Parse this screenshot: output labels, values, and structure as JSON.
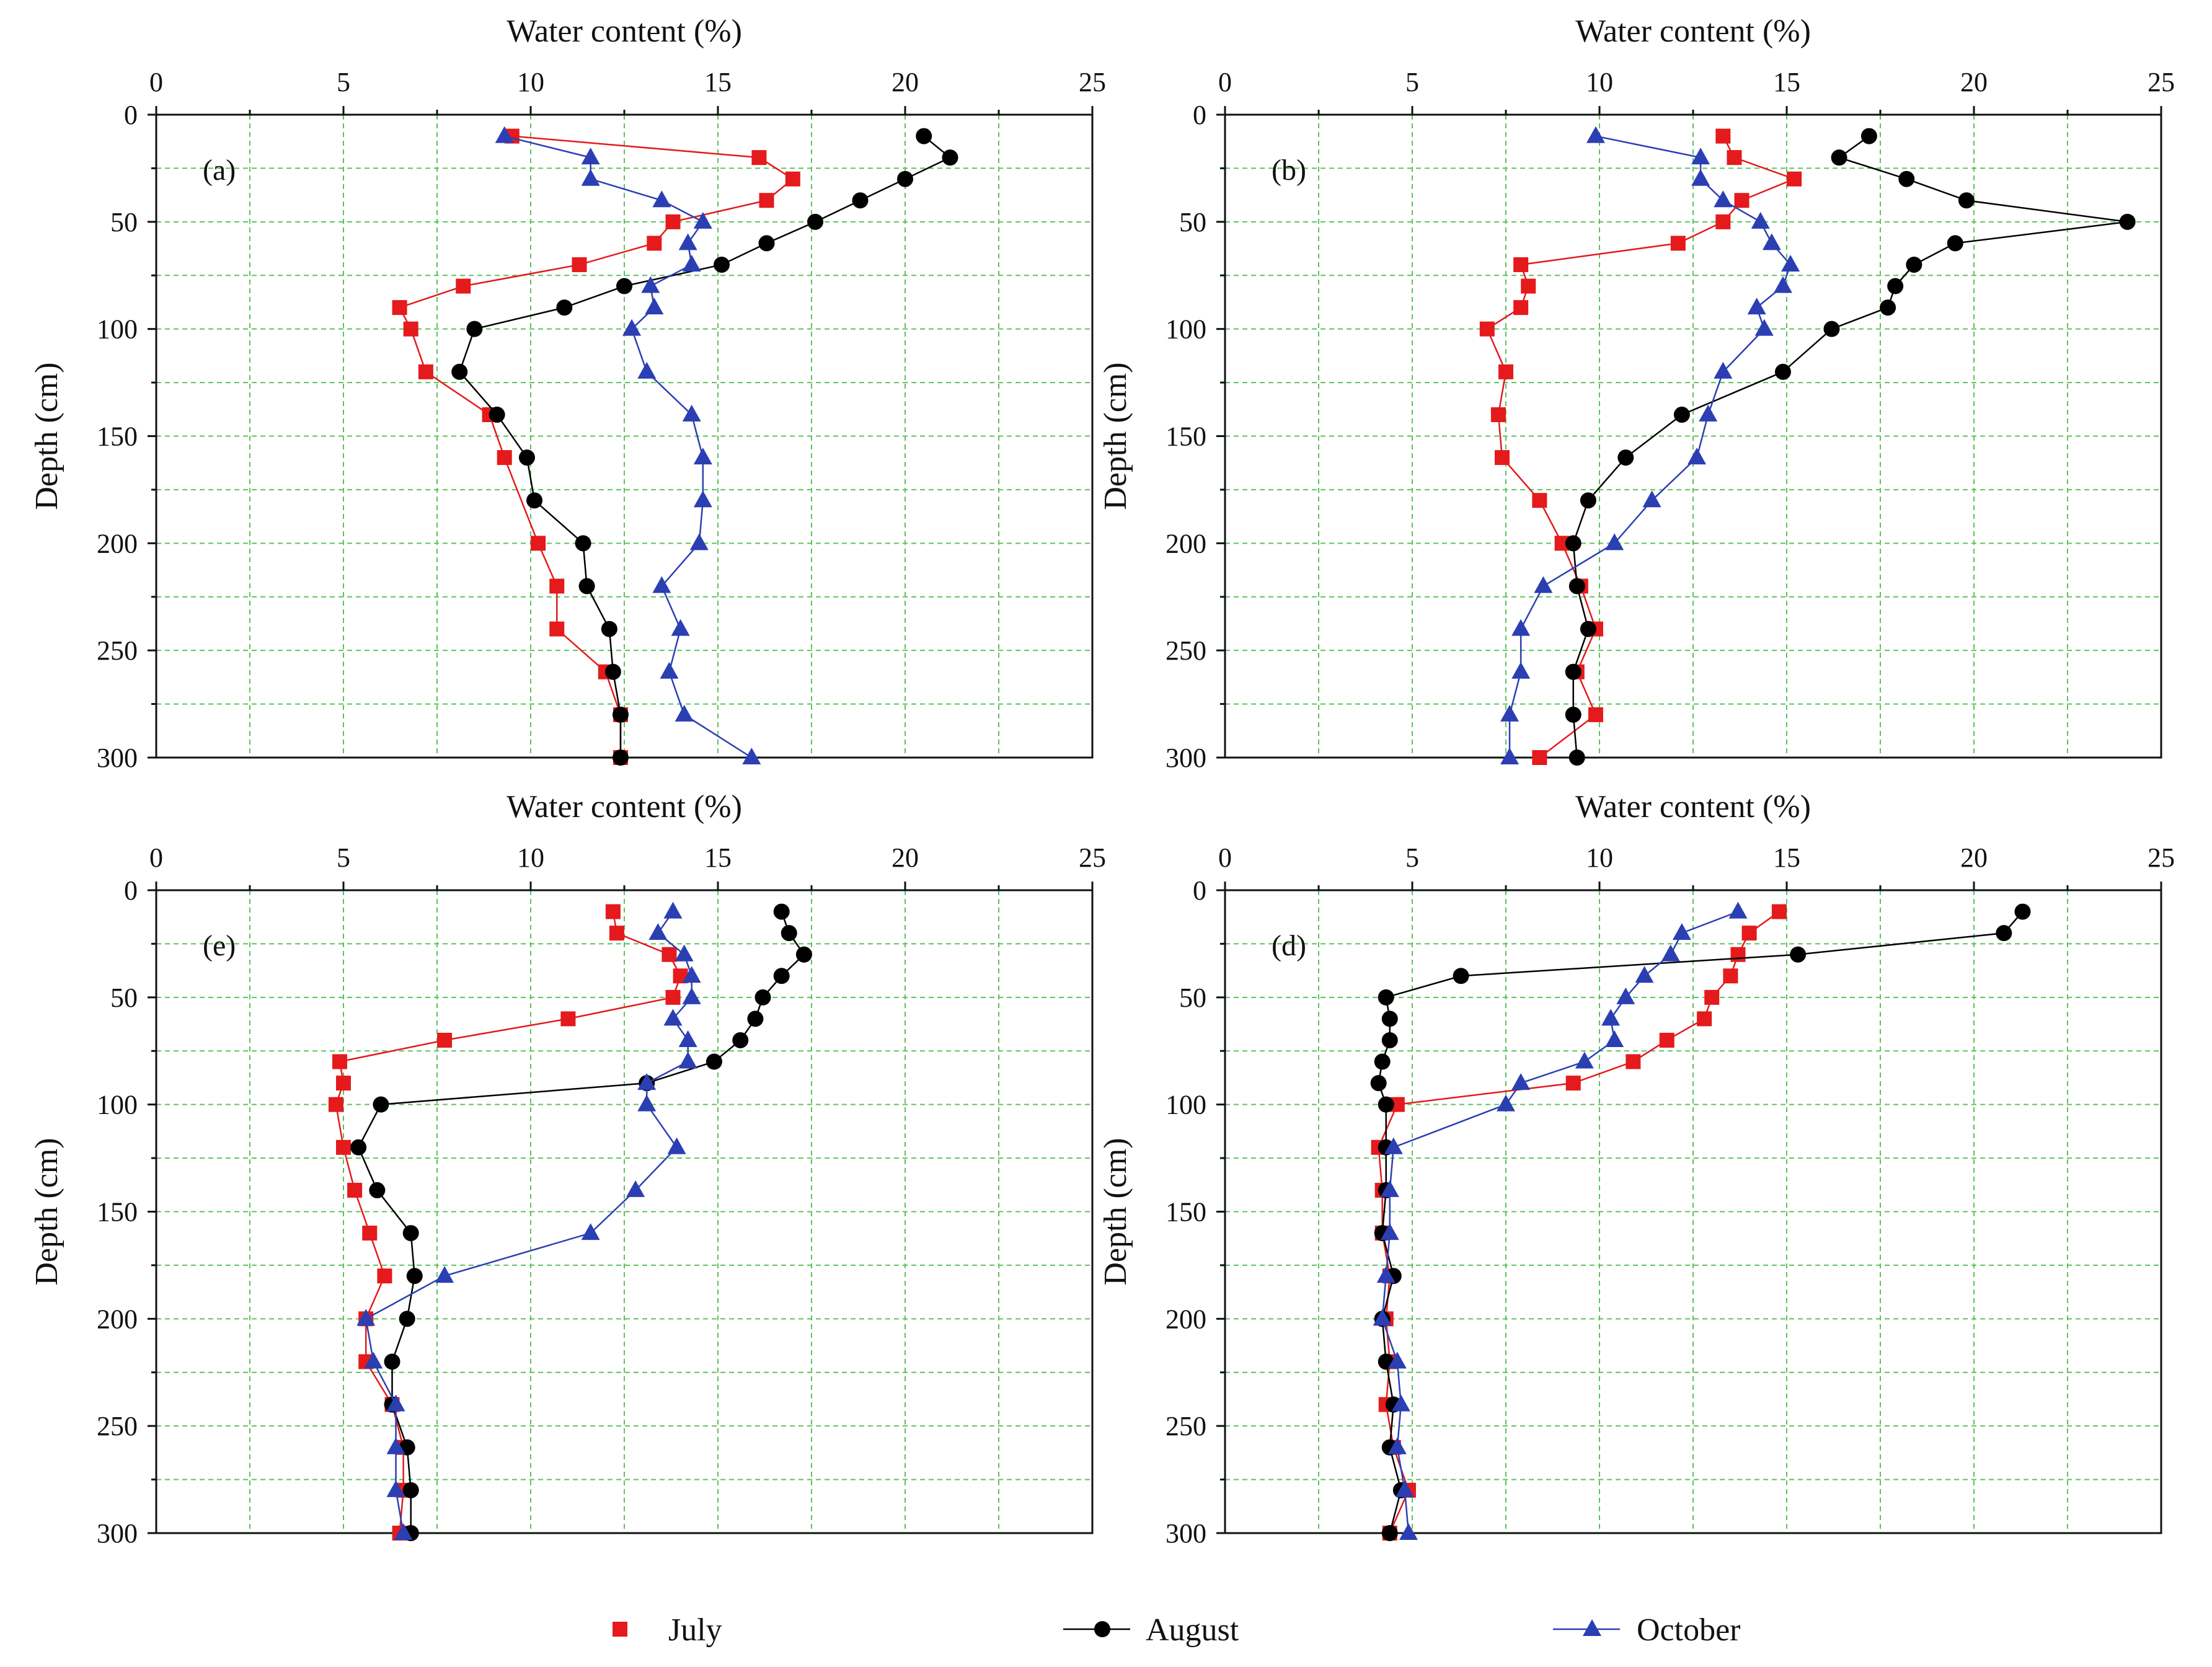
{
  "figure": {
    "legend": [
      {
        "name": "July",
        "marker": "square",
        "color": "#e41a1c"
      },
      {
        "name": "August",
        "marker": "circle",
        "color": "#000000"
      },
      {
        "name": "October",
        "marker": "triangle",
        "color": "#2b3fb3"
      }
    ]
  },
  "chart_data": [
    {
      "type": "line",
      "panel_label": "(a)",
      "xlabel": "Water content (%)",
      "ylabel": "Depth (cm)",
      "xlim": [
        0,
        25
      ],
      "ylim": [
        0,
        300
      ],
      "xticks": [
        0,
        5,
        10,
        15,
        20,
        25
      ],
      "yticks": [
        0,
        50,
        100,
        150,
        200,
        250,
        300
      ],
      "y_inverted": true,
      "x_axis_position": "top",
      "grid": true,
      "series": [
        {
          "name": "July",
          "color": "#e41a1c",
          "marker": "square",
          "x": [
            9.5,
            16.1,
            17.0,
            16.3,
            13.8,
            13.3,
            11.3,
            8.2,
            6.5,
            6.8,
            7.2,
            8.9,
            9.3,
            10.2,
            10.7,
            10.7,
            12.0,
            12.4,
            12.4
          ],
          "y": [
            10,
            20,
            30,
            40,
            50,
            60,
            70,
            80,
            90,
            100,
            120,
            140,
            160,
            200,
            220,
            240,
            260,
            280,
            300
          ]
        },
        {
          "name": "August",
          "color": "#000000",
          "marker": "circle",
          "x": [
            20.5,
            21.2,
            20.0,
            18.8,
            17.6,
            16.3,
            15.1,
            12.5,
            10.9,
            8.5,
            8.1,
            9.1,
            9.9,
            10.1,
            11.4,
            11.5,
            12.1,
            12.2,
            12.4,
            12.4
          ],
          "y": [
            10,
            20,
            30,
            40,
            50,
            60,
            70,
            80,
            90,
            100,
            120,
            140,
            160,
            180,
            200,
            220,
            240,
            260,
            280,
            300
          ]
        },
        {
          "name": "October",
          "color": "#2b3fb3",
          "marker": "triangle",
          "x": [
            9.3,
            11.6,
            11.6,
            13.5,
            14.6,
            14.2,
            14.3,
            13.2,
            13.3,
            12.7,
            13.1,
            14.3,
            14.6,
            14.6,
            14.5,
            13.5,
            14.0,
            13.7,
            14.1,
            15.9
          ],
          "y": [
            10,
            20,
            30,
            40,
            50,
            60,
            70,
            80,
            90,
            100,
            120,
            140,
            160,
            180,
            200,
            220,
            240,
            260,
            280,
            300
          ]
        }
      ]
    },
    {
      "type": "line",
      "panel_label": "(b)",
      "xlabel": "Water content (%)",
      "ylabel": "Depth (cm)",
      "xlim": [
        0,
        25
      ],
      "ylim": [
        0,
        300
      ],
      "xticks": [
        0,
        5,
        10,
        15,
        20,
        25
      ],
      "yticks": [
        0,
        50,
        100,
        150,
        200,
        250,
        300
      ],
      "y_inverted": true,
      "x_axis_position": "top",
      "grid": true,
      "series": [
        {
          "name": "July",
          "color": "#e41a1c",
          "marker": "square",
          "x": [
            13.3,
            13.6,
            15.2,
            13.8,
            13.3,
            12.1,
            7.9,
            8.1,
            7.9,
            7.0,
            7.5,
            7.3,
            7.4,
            8.4,
            9.0,
            9.5,
            9.9,
            9.4,
            9.9,
            8.4
          ],
          "y": [
            10,
            20,
            30,
            40,
            50,
            60,
            70,
            80,
            90,
            100,
            120,
            140,
            160,
            180,
            200,
            220,
            240,
            260,
            280,
            300
          ]
        },
        {
          "name": "August",
          "color": "#000000",
          "marker": "circle",
          "x": [
            17.2,
            16.4,
            18.2,
            19.8,
            24.1,
            19.5,
            18.4,
            17.9,
            17.7,
            16.2,
            14.9,
            12.2,
            10.7,
            9.7,
            9.3,
            9.4,
            9.7,
            9.3,
            9.3,
            9.4
          ],
          "y": [
            10,
            20,
            30,
            40,
            50,
            60,
            70,
            80,
            90,
            100,
            120,
            140,
            160,
            180,
            200,
            220,
            240,
            260,
            280,
            300
          ]
        },
        {
          "name": "October",
          "color": "#2b3fb3",
          "marker": "triangle",
          "x": [
            9.9,
            12.7,
            12.7,
            13.3,
            14.3,
            14.6,
            15.1,
            14.9,
            14.2,
            14.4,
            13.3,
            12.9,
            12.6,
            11.4,
            10.4,
            8.5,
            7.9,
            7.9,
            7.6,
            7.6
          ],
          "y": [
            10,
            20,
            30,
            40,
            50,
            60,
            70,
            80,
            90,
            100,
            120,
            140,
            160,
            180,
            200,
            220,
            240,
            260,
            280,
            300
          ]
        }
      ]
    },
    {
      "type": "line",
      "panel_label": "(e)",
      "xlabel": "Water content (%)",
      "ylabel": "Depth (cm)",
      "xlim": [
        0,
        25
      ],
      "ylim": [
        0,
        300
      ],
      "xticks": [
        0,
        5,
        10,
        15,
        20,
        25
      ],
      "yticks": [
        0,
        50,
        100,
        150,
        200,
        250,
        300
      ],
      "y_inverted": true,
      "x_axis_position": "top",
      "grid": true,
      "series": [
        {
          "name": "July",
          "color": "#e41a1c",
          "marker": "square",
          "x": [
            12.2,
            12.3,
            13.7,
            14.0,
            13.8,
            11.0,
            7.7,
            4.9,
            5.0,
            4.8,
            5.0,
            5.3,
            5.7,
            6.1,
            5.6,
            5.6,
            6.3,
            6.6,
            6.6,
            6.5
          ],
          "y": [
            10,
            20,
            30,
            40,
            50,
            60,
            70,
            80,
            90,
            100,
            120,
            140,
            160,
            180,
            200,
            220,
            240,
            260,
            280,
            300
          ]
        },
        {
          "name": "August",
          "color": "#000000",
          "marker": "circle",
          "x": [
            16.7,
            16.9,
            17.3,
            16.7,
            16.2,
            16.0,
            15.6,
            14.9,
            13.1,
            6.0,
            5.4,
            5.9,
            6.8,
            6.9,
            6.7,
            6.3,
            6.3,
            6.7,
            6.8,
            6.8
          ],
          "y": [
            10,
            20,
            30,
            40,
            50,
            60,
            70,
            80,
            90,
            100,
            120,
            140,
            160,
            180,
            200,
            220,
            240,
            260,
            280,
            300
          ]
        },
        {
          "name": "October",
          "color": "#2b3fb3",
          "marker": "triangle",
          "x": [
            13.8,
            13.4,
            14.1,
            14.3,
            14.3,
            13.8,
            14.2,
            14.2,
            13.1,
            13.1,
            13.9,
            12.8,
            11.6,
            7.7,
            5.6,
            5.8,
            6.4,
            6.4,
            6.4,
            6.6
          ],
          "y": [
            10,
            20,
            30,
            40,
            50,
            60,
            70,
            80,
            90,
            100,
            120,
            140,
            160,
            180,
            200,
            220,
            240,
            260,
            280,
            300
          ]
        }
      ]
    },
    {
      "type": "line",
      "panel_label": "(d)",
      "xlabel": "Water content (%)",
      "ylabel": "Depth (cm)",
      "xlim": [
        0,
        25
      ],
      "ylim": [
        0,
        300
      ],
      "xticks": [
        0,
        5,
        10,
        15,
        20,
        25
      ],
      "yticks": [
        0,
        50,
        100,
        150,
        200,
        250,
        300
      ],
      "y_inverted": true,
      "x_axis_position": "top",
      "grid": true,
      "series": [
        {
          "name": "July",
          "color": "#e41a1c",
          "marker": "square",
          "x": [
            14.8,
            14.0,
            13.7,
            13.5,
            13.0,
            12.8,
            11.8,
            10.9,
            9.3,
            4.6,
            4.1,
            4.2,
            4.2,
            4.4,
            4.3,
            4.4,
            4.3,
            4.5,
            4.9,
            4.4
          ],
          "y": [
            10,
            20,
            30,
            40,
            50,
            60,
            70,
            80,
            90,
            100,
            120,
            140,
            160,
            180,
            200,
            220,
            240,
            260,
            280,
            300
          ]
        },
        {
          "name": "August",
          "color": "#000000",
          "marker": "circle",
          "x": [
            21.3,
            20.8,
            15.3,
            6.3,
            4.3,
            4.4,
            4.4,
            4.2,
            4.1,
            4.3,
            4.3,
            4.3,
            4.2,
            4.5,
            4.2,
            4.3,
            4.5,
            4.4,
            4.7,
            4.4
          ],
          "y": [
            10,
            20,
            30,
            40,
            50,
            60,
            70,
            80,
            90,
            100,
            120,
            140,
            160,
            180,
            200,
            220,
            240,
            260,
            280,
            300
          ]
        },
        {
          "name": "October",
          "color": "#2b3fb3",
          "marker": "triangle",
          "x": [
            13.7,
            12.2,
            11.9,
            11.2,
            10.7,
            10.3,
            10.4,
            9.6,
            7.9,
            7.5,
            4.5,
            4.4,
            4.4,
            4.3,
            4.2,
            4.6,
            4.7,
            4.6,
            4.8,
            4.9
          ],
          "y": [
            10,
            20,
            30,
            40,
            50,
            60,
            70,
            80,
            90,
            100,
            120,
            140,
            160,
            180,
            200,
            220,
            240,
            260,
            280,
            300
          ]
        }
      ]
    }
  ]
}
